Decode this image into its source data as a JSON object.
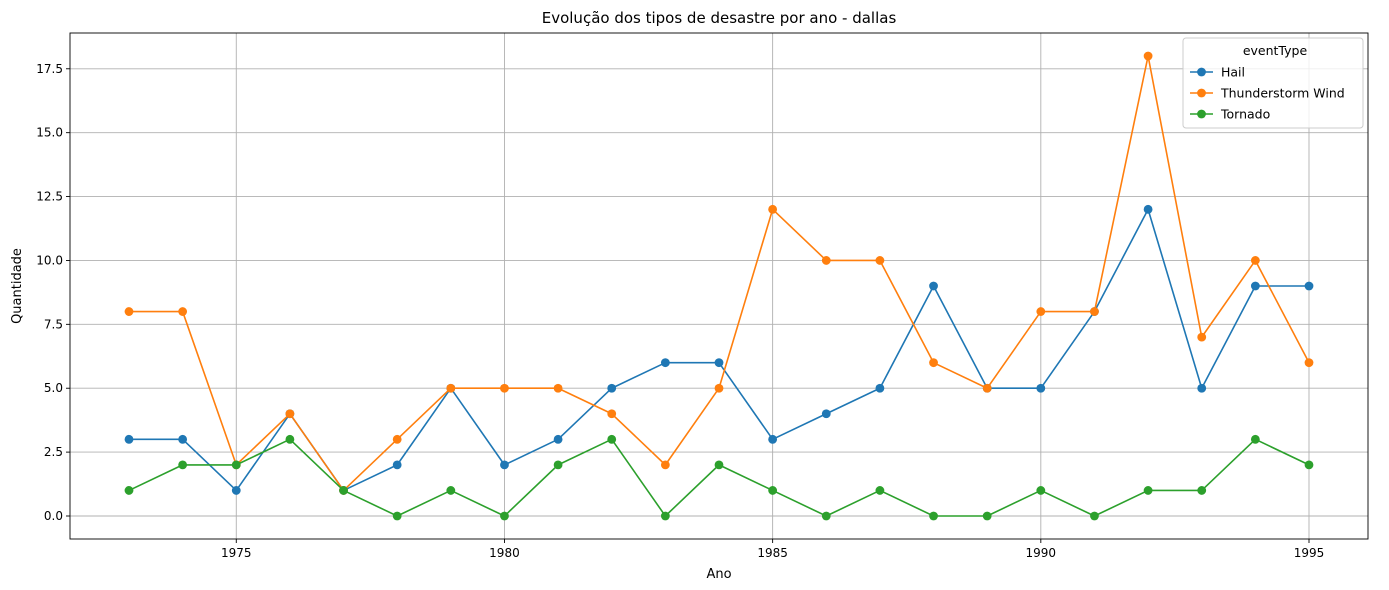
{
  "chart_data": {
    "type": "line",
    "title": "Evolução dos tipos de desastre por ano - dallas",
    "xlabel": "Ano",
    "ylabel": "Quantidade",
    "x": [
      1973,
      1974,
      1975,
      1976,
      1977,
      1978,
      1979,
      1980,
      1981,
      1982,
      1983,
      1984,
      1985,
      1986,
      1987,
      1988,
      1989,
      1990,
      1991,
      1992,
      1993,
      1994,
      1995
    ],
    "xlim": [
      1971.9,
      1996.1
    ],
    "ylim": [
      -0.9,
      18.9
    ],
    "xticks": [
      1975,
      1980,
      1985,
      1990,
      1995
    ],
    "xtick_labels": [
      "1975",
      "1980",
      "1985",
      "1990",
      "1995"
    ],
    "yticks": [
      0,
      2.5,
      5,
      7.5,
      10,
      12.5,
      15,
      17.5
    ],
    "ytick_labels": [
      "0.0",
      "2.5",
      "5.0",
      "7.5",
      "10.0",
      "12.5",
      "15.0",
      "17.5"
    ],
    "grid": true,
    "legend": {
      "title": "eventType",
      "placement": "top-right"
    },
    "series": [
      {
        "name": "Hail",
        "color": "#1f77b4",
        "values": [
          3,
          3,
          1,
          4,
          1,
          2,
          5,
          2,
          3,
          5,
          6,
          6,
          3,
          4,
          5,
          9,
          5,
          5,
          8,
          12,
          5,
          9,
          9
        ]
      },
      {
        "name": "Thunderstorm Wind",
        "color": "#ff7f0e",
        "values": [
          8,
          8,
          2,
          4,
          1,
          3,
          5,
          5,
          5,
          4,
          2,
          5,
          12,
          10,
          10,
          6,
          5,
          8,
          8,
          18,
          7,
          10,
          6
        ]
      },
      {
        "name": "Tornado",
        "color": "#2ca02c",
        "values": [
          1,
          2,
          2,
          3,
          1,
          0,
          1,
          0,
          2,
          3,
          0,
          2,
          1,
          0,
          1,
          0,
          0,
          1,
          0,
          1,
          1,
          3,
          2
        ]
      }
    ]
  }
}
